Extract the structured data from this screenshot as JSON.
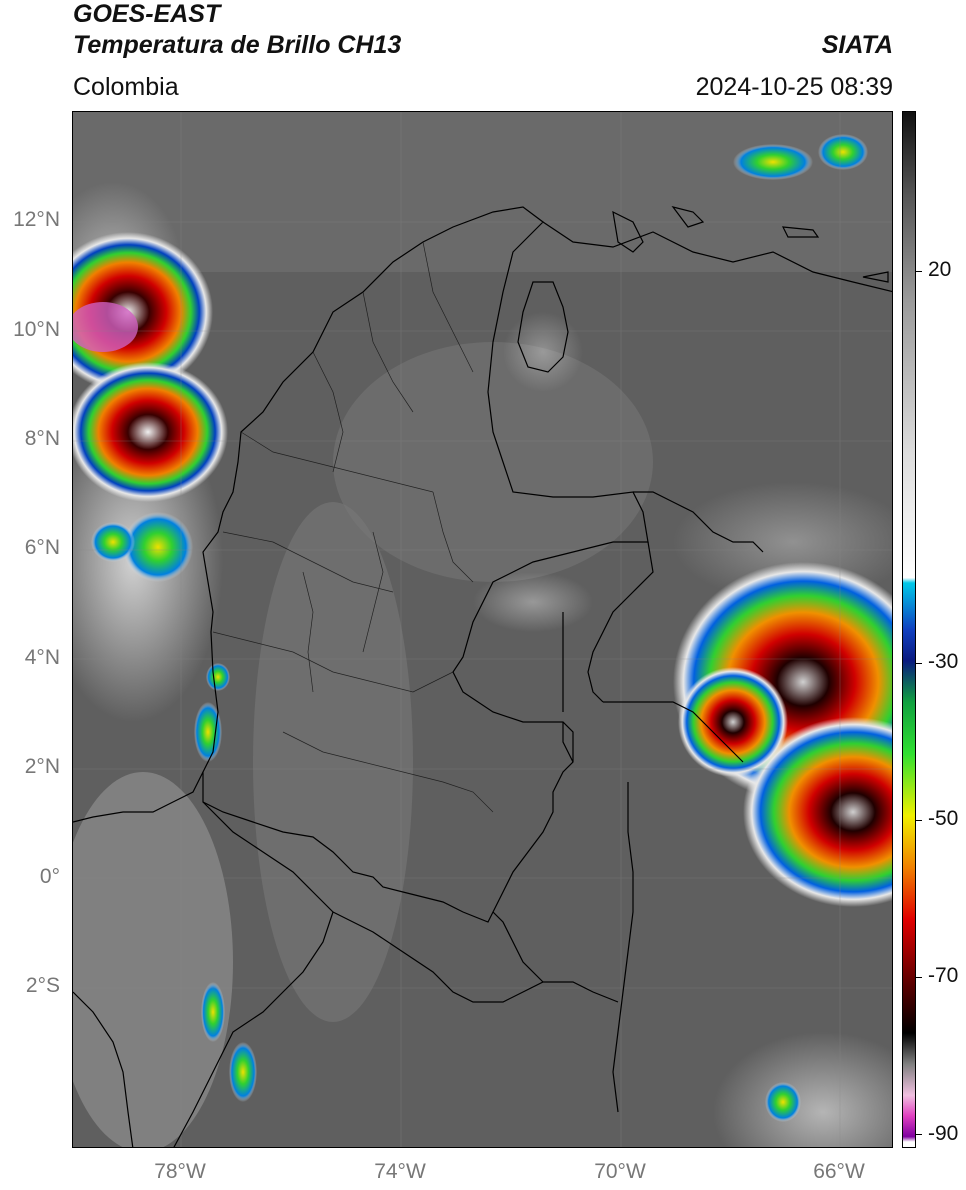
{
  "header": {
    "satellite": "GOES-EAST",
    "product": "Temperatura de Brillo CH13",
    "org": "SIATA",
    "region": "Colombia",
    "datetime": "2024-10-25 08:39"
  },
  "axes": {
    "lat_labels": [
      "12°N",
      "10°N",
      "8°N",
      "6°N",
      "4°N",
      "2°N",
      "0°",
      "2°S"
    ],
    "lon_labels": [
      "78°W",
      "74°W",
      "70°W",
      "66°W"
    ]
  },
  "colorbar": {
    "tick_labels": [
      "20",
      "-30",
      "-50",
      "-70",
      "-90"
    ],
    "stops": [
      {
        "color": "#111111"
      },
      {
        "color": "#555555"
      },
      {
        "color": "#999999"
      },
      {
        "color": "#dddddd"
      },
      {
        "color": "#ffffff"
      },
      {
        "color": "#00c8e8"
      },
      {
        "color": "#1040c0"
      },
      {
        "color": "#0a1a80"
      },
      {
        "color": "#10a040"
      },
      {
        "color": "#30e030"
      },
      {
        "color": "#f0f000"
      },
      {
        "color": "#f08000"
      },
      {
        "color": "#e00000"
      },
      {
        "color": "#600000"
      },
      {
        "color": "#000000"
      },
      {
        "color": "#808080"
      },
      {
        "color": "#f0c0e0"
      },
      {
        "color": "#e040c0"
      },
      {
        "color": "#8000a0"
      },
      {
        "color": "#ffffff"
      }
    ]
  },
  "colors": {
    "land_gray": "#5e5e5e",
    "cloud_white": "#e8e8e8",
    "storm_red": "#e00000",
    "storm_yellow": "#f0e000",
    "storm_green": "#30d030",
    "storm_blue": "#0050d0",
    "storm_magenta": "#e050c0",
    "border": "#000000"
  }
}
